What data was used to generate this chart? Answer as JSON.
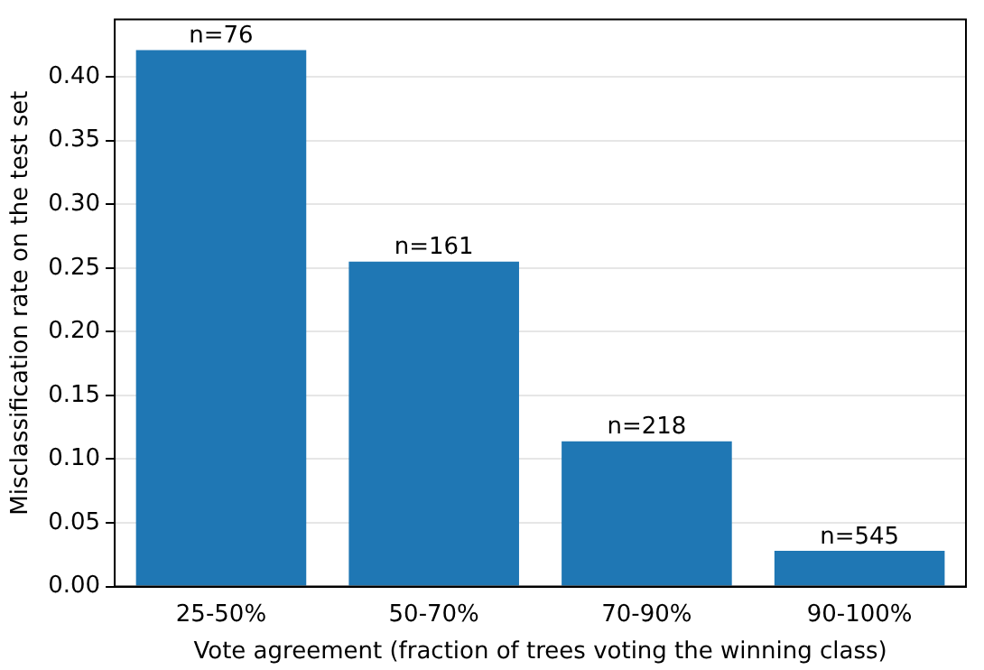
{
  "chart_data": {
    "type": "bar",
    "xlabel": "Vote agreement (fraction of trees voting the winning class)",
    "ylabel": "Misclassification rate on the test set",
    "categories": [
      "25-50%",
      "50-70%",
      "70-90%",
      "90-100%"
    ],
    "values": [
      0.421,
      0.255,
      0.114,
      0.028
    ],
    "annotations": [
      {
        "text": "n=76",
        "x": "25-50%",
        "y": 0.421
      },
      {
        "text": "n=161",
        "x": "50-70%",
        "y": 0.255
      },
      {
        "text": "n=218",
        "x": "70-90%",
        "y": 0.114
      },
      {
        "text": "n=545",
        "x": "90-100%",
        "y": 0.028
      }
    ],
    "color": "#1f77b4",
    "ylim": [
      0,
      0.445
    ],
    "yticks": [
      {
        "value": 0,
        "label": "0.00"
      },
      {
        "value": 0.05,
        "label": "0.05"
      },
      {
        "value": 0.1,
        "label": "0.10"
      },
      {
        "value": 0.15,
        "label": "0.15"
      },
      {
        "value": 0.2,
        "label": "0.20"
      },
      {
        "value": 0.25,
        "label": "0.25"
      },
      {
        "value": 0.3,
        "label": "0.30"
      },
      {
        "value": 0.35,
        "label": "0.35"
      },
      {
        "value": 0.4,
        "label": "0.40"
      }
    ],
    "grid": "y"
  }
}
